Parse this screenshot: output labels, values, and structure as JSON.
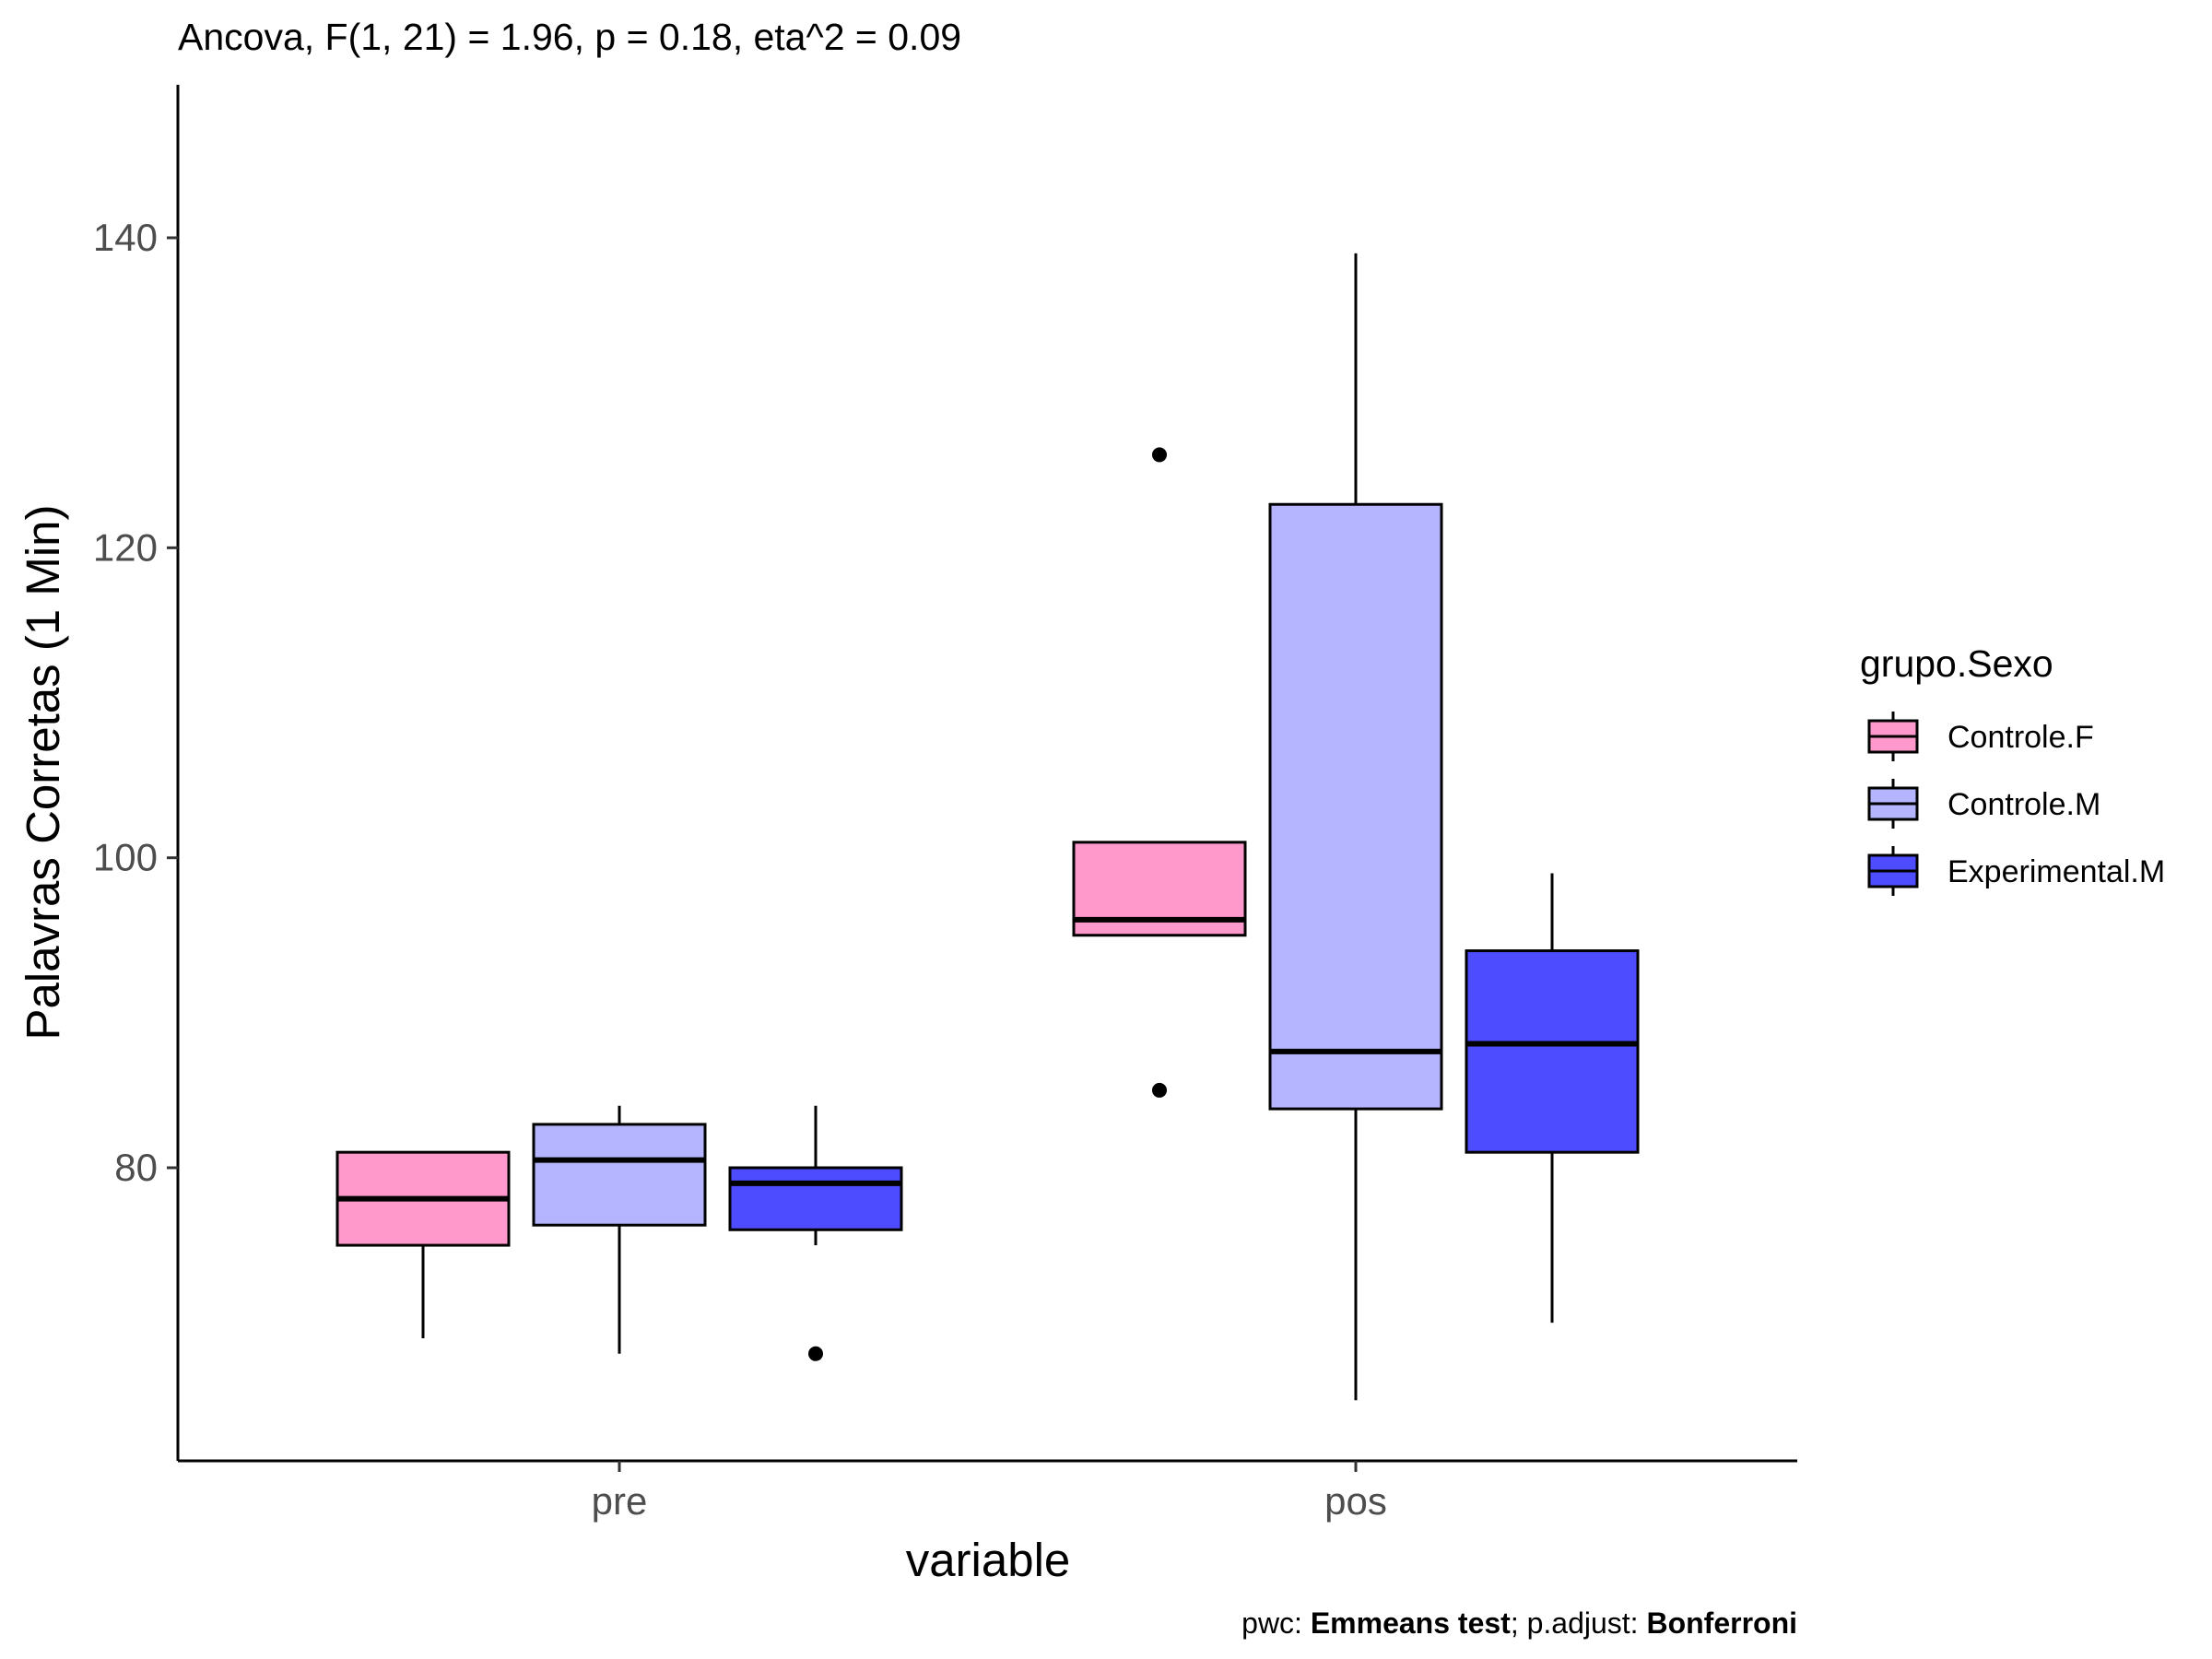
{
  "chart_data": {
    "type": "boxplot",
    "title": "Ancova, F(1, 21) = 1.96, p = 0.18, eta^2 = 0.09",
    "xlabel": "variable",
    "ylabel": "Palavras Corretas (1 Min)",
    "categories": [
      "pre",
      "pos"
    ],
    "y_ticks": [
      80,
      100,
      120,
      140
    ],
    "ylim": [
      61,
      150
    ],
    "grid": false,
    "legend": {
      "title": "grupo.Sexo",
      "placement": "right",
      "entries": [
        "Controle.F",
        "Controle.M",
        "Experimental.M"
      ]
    },
    "series": [
      {
        "name": "Controle.F",
        "color": "#FF99CC",
        "boxes": [
          {
            "category": "pre",
            "whisker_low": 69,
            "q1": 75,
            "median": 78,
            "q3": 81,
            "whisker_high": 81,
            "outliers": []
          },
          {
            "category": "pos",
            "whisker_low": 95,
            "q1": 95,
            "median": 96,
            "q3": 101,
            "whisker_high": 101,
            "outliers": [
              126,
              85
            ]
          }
        ]
      },
      {
        "name": "Controle.M",
        "color": "#B5B5FF",
        "boxes": [
          {
            "category": "pre",
            "whisker_low": 68,
            "q1": 76.3,
            "median": 80.5,
            "q3": 82.8,
            "whisker_high": 84,
            "outliers": []
          },
          {
            "category": "pos",
            "whisker_low": 65,
            "q1": 83.8,
            "median": 87.5,
            "q3": 122.8,
            "whisker_high": 139,
            "outliers": []
          }
        ]
      },
      {
        "name": "Experimental.M",
        "color": "#4D4DFF",
        "boxes": [
          {
            "category": "pre",
            "whisker_low": 75,
            "q1": 76,
            "median": 79,
            "q3": 80,
            "whisker_high": 84,
            "outliers": [
              68
            ]
          },
          {
            "category": "pos",
            "whisker_low": 70,
            "q1": 81,
            "median": 88,
            "q3": 94,
            "whisker_high": 99,
            "outliers": []
          }
        ]
      }
    ],
    "caption": {
      "prefix": "pwc: ",
      "method": "Emmeans test",
      "middle": "; p.adjust: ",
      "adjust": "Bonferroni"
    }
  }
}
